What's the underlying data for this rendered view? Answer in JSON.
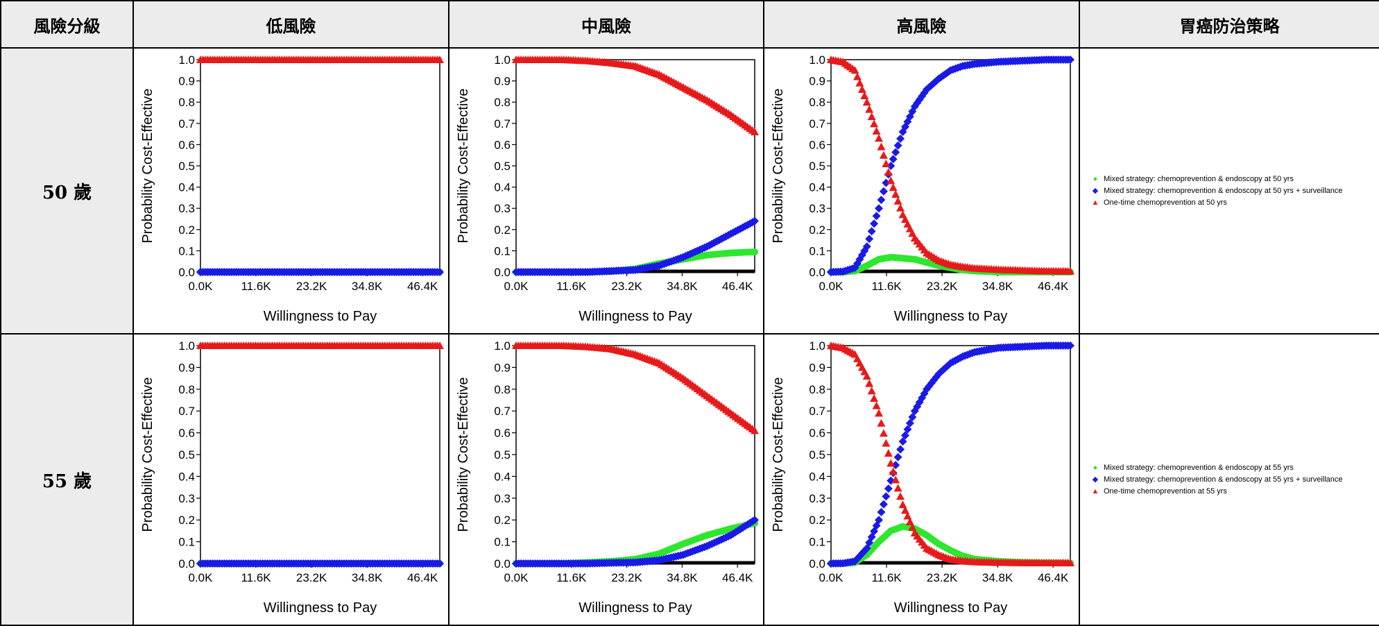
{
  "table": {
    "headers": [
      "風險分級",
      "低風險",
      "中風險",
      "高風險",
      "胃癌防治策略"
    ],
    "rows": [
      {
        "age_label": "50 歲",
        "legend": [
          {
            "label": "Mixed strategy: chemoprevention & endoscopy at 50 yrs",
            "color": "#2ee62e",
            "marker": "circle"
          },
          {
            "label": "Mixed strategy: chemoprevention & endoscopy at 50 yrs + surveillance",
            "color": "#1a1ae6",
            "marker": "diamond"
          },
          {
            "label": "One-time chemoprevention at 50 yrs",
            "color": "#e61a1a",
            "marker": "triangle"
          }
        ]
      },
      {
        "age_label": "55 歲",
        "legend": [
          {
            "label": "Mixed strategy: chemoprevention & endoscopy at 55 yrs",
            "color": "#2ee62e",
            "marker": "circle"
          },
          {
            "label": "Mixed strategy: chemoprevention & endoscopy at 55 yrs + surveillance",
            "color": "#1a1ae6",
            "marker": "diamond"
          },
          {
            "label": "One-time chemoprevention at 55 yrs",
            "color": "#e61a1a",
            "marker": "triangle"
          }
        ]
      }
    ]
  },
  "chart_data": [
    {
      "type": "scatter",
      "panel": "50 歲 / 低風險",
      "xlabel": "Willingness to Pay",
      "ylabel": "Probability Cost-Effective",
      "xlim": [
        0,
        50000
      ],
      "ylim": [
        0,
        1.0
      ],
      "x_ticks": [
        0,
        11600,
        23200,
        34800,
        46400
      ],
      "x_tick_labels": [
        "0.0K",
        "11.6K",
        "23.2K",
        "34.8K",
        "46.4K"
      ],
      "y_ticks": [
        0,
        0.1,
        0.2,
        0.3,
        0.4,
        0.5,
        0.6,
        0.7,
        0.8,
        0.9,
        1.0
      ],
      "y_tick_labels": [
        "0.0",
        "0.1",
        "0.2",
        "0.3",
        "0.4",
        "0.5",
        "0.6",
        "0.7",
        "0.8",
        "0.9",
        "1.0"
      ],
      "x": [
        0,
        5000,
        10000,
        15000,
        20000,
        25000,
        30000,
        35000,
        40000,
        45000,
        50000
      ],
      "series": [
        {
          "strategy": "mixed",
          "color": "#2ee62e",
          "values": [
            0,
            0,
            0,
            0,
            0,
            0,
            0,
            0,
            0,
            0,
            0
          ]
        },
        {
          "strategy": "mixed+surveillance",
          "color": "#1a1ae6",
          "values": [
            0,
            0,
            0,
            0,
            0,
            0,
            0,
            0,
            0,
            0,
            0
          ]
        },
        {
          "strategy": "one-time",
          "color": "#e61a1a",
          "values": [
            1,
            1,
            1,
            1,
            1,
            1,
            1,
            1,
            1,
            1,
            1
          ]
        }
      ]
    },
    {
      "type": "scatter",
      "panel": "50 歲 / 中風險",
      "xlabel": "Willingness to Pay",
      "ylabel": "Probability Cost-Effective",
      "xlim": [
        0,
        50000
      ],
      "ylim": [
        0,
        1.0
      ],
      "x_ticks": [
        0,
        11600,
        23200,
        34800,
        46400
      ],
      "x_tick_labels": [
        "0.0K",
        "11.6K",
        "23.2K",
        "34.8K",
        "46.4K"
      ],
      "y_ticks": [
        0,
        0.1,
        0.2,
        0.3,
        0.4,
        0.5,
        0.6,
        0.7,
        0.8,
        0.9,
        1.0
      ],
      "y_tick_labels": [
        "0.0",
        "0.1",
        "0.2",
        "0.3",
        "0.4",
        "0.5",
        "0.6",
        "0.7",
        "0.8",
        "0.9",
        "1.0"
      ],
      "x": [
        0,
        5000,
        10000,
        15000,
        20000,
        25000,
        30000,
        35000,
        40000,
        45000,
        50000
      ],
      "series": [
        {
          "strategy": "mixed",
          "color": "#2ee62e",
          "values": [
            0,
            0,
            0,
            0,
            0.003,
            0.015,
            0.04,
            0.06,
            0.08,
            0.09,
            0.095
          ]
        },
        {
          "strategy": "mixed+surveillance",
          "color": "#1a1ae6",
          "values": [
            0,
            0,
            0,
            0,
            0.005,
            0.01,
            0.03,
            0.07,
            0.12,
            0.18,
            0.24
          ]
        },
        {
          "strategy": "one-time",
          "color": "#e61a1a",
          "values": [
            1.0,
            1.0,
            1.0,
            0.995,
            0.985,
            0.97,
            0.93,
            0.87,
            0.81,
            0.74,
            0.66
          ]
        }
      ]
    },
    {
      "type": "scatter",
      "panel": "50 歲 / 高風險",
      "xlabel": "Willingness to Pay",
      "ylabel": "Probability Cost-Effective",
      "xlim": [
        0,
        50000
      ],
      "ylim": [
        0,
        1.0
      ],
      "x_ticks": [
        0,
        11600,
        23200,
        34800,
        46400
      ],
      "x_tick_labels": [
        "0.0K",
        "11.6K",
        "23.2K",
        "34.8K",
        "46.4K"
      ],
      "y_ticks": [
        0,
        0.1,
        0.2,
        0.3,
        0.4,
        0.5,
        0.6,
        0.7,
        0.8,
        0.9,
        1.0
      ],
      "y_tick_labels": [
        "0.0",
        "0.1",
        "0.2",
        "0.3",
        "0.4",
        "0.5",
        "0.6",
        "0.7",
        "0.8",
        "0.9",
        "1.0"
      ],
      "x": [
        0,
        2500,
        5000,
        7500,
        10000,
        12500,
        15000,
        17500,
        20000,
        22500,
        25000,
        27500,
        30000,
        35000,
        40000,
        45000,
        50000
      ],
      "series": [
        {
          "strategy": "mixed",
          "color": "#2ee62e",
          "values": [
            0,
            0,
            0.005,
            0.03,
            0.06,
            0.07,
            0.065,
            0.06,
            0.045,
            0.03,
            0.02,
            0.01,
            0.005,
            0,
            0,
            0,
            0
          ]
        },
        {
          "strategy": "mixed+surveillance",
          "color": "#1a1ae6",
          "values": [
            0,
            0.002,
            0.02,
            0.12,
            0.3,
            0.5,
            0.66,
            0.78,
            0.86,
            0.91,
            0.95,
            0.97,
            0.98,
            0.99,
            0.995,
            1.0,
            1.0
          ]
        },
        {
          "strategy": "one-time",
          "color": "#e61a1a",
          "values": [
            1.0,
            0.99,
            0.95,
            0.8,
            0.63,
            0.43,
            0.27,
            0.16,
            0.09,
            0.055,
            0.035,
            0.025,
            0.018,
            0.012,
            0.008,
            0.005,
            0.004
          ]
        }
      ]
    },
    {
      "type": "scatter",
      "panel": "55 歲 / 低風險",
      "xlabel": "Willingness to Pay",
      "ylabel": "Probability Cost-Effective",
      "xlim": [
        0,
        50000
      ],
      "ylim": [
        0,
        1.0
      ],
      "x_ticks": [
        0,
        11600,
        23200,
        34800,
        46400
      ],
      "x_tick_labels": [
        "0.0K",
        "11.6K",
        "23.2K",
        "34.8K",
        "46.4K"
      ],
      "y_ticks": [
        0,
        0.1,
        0.2,
        0.3,
        0.4,
        0.5,
        0.6,
        0.7,
        0.8,
        0.9,
        1.0
      ],
      "y_tick_labels": [
        "0.0",
        "0.1",
        "0.2",
        "0.3",
        "0.4",
        "0.5",
        "0.6",
        "0.7",
        "0.8",
        "0.9",
        "1.0"
      ],
      "x": [
        0,
        5000,
        10000,
        15000,
        20000,
        25000,
        30000,
        35000,
        40000,
        45000,
        50000
      ],
      "series": [
        {
          "strategy": "mixed",
          "color": "#2ee62e",
          "values": [
            0,
            0,
            0,
            0,
            0,
            0,
            0,
            0,
            0,
            0,
            0
          ]
        },
        {
          "strategy": "mixed+surveillance",
          "color": "#1a1ae6",
          "values": [
            0,
            0,
            0,
            0,
            0,
            0,
            0,
            0,
            0,
            0,
            0
          ]
        },
        {
          "strategy": "one-time",
          "color": "#e61a1a",
          "values": [
            1,
            1,
            1,
            1,
            1,
            1,
            1,
            1,
            1,
            1,
            1
          ]
        }
      ]
    },
    {
      "type": "scatter",
      "panel": "55 歲 / 中風險",
      "xlabel": "Willingness to Pay",
      "ylabel": "Probability Cost-Effective",
      "xlim": [
        0,
        50000
      ],
      "ylim": [
        0,
        1.0
      ],
      "x_ticks": [
        0,
        11600,
        23200,
        34800,
        46400
      ],
      "x_tick_labels": [
        "0.0K",
        "11.6K",
        "23.2K",
        "34.8K",
        "46.4K"
      ],
      "y_ticks": [
        0,
        0.1,
        0.2,
        0.3,
        0.4,
        0.5,
        0.6,
        0.7,
        0.8,
        0.9,
        1.0
      ],
      "y_tick_labels": [
        "0.0",
        "0.1",
        "0.2",
        "0.3",
        "0.4",
        "0.5",
        "0.6",
        "0.7",
        "0.8",
        "0.9",
        "1.0"
      ],
      "x": [
        0,
        5000,
        10000,
        15000,
        20000,
        25000,
        30000,
        35000,
        40000,
        45000,
        50000
      ],
      "series": [
        {
          "strategy": "mixed",
          "color": "#2ee62e",
          "values": [
            0,
            0,
            0,
            0.005,
            0.01,
            0.02,
            0.045,
            0.09,
            0.13,
            0.16,
            0.185
          ]
        },
        {
          "strategy": "mixed+surveillance",
          "color": "#1a1ae6",
          "values": [
            0,
            0,
            0,
            0,
            0.003,
            0.005,
            0.015,
            0.04,
            0.08,
            0.13,
            0.2
          ]
        },
        {
          "strategy": "one-time",
          "color": "#e61a1a",
          "values": [
            1.0,
            1.0,
            1.0,
            0.995,
            0.985,
            0.96,
            0.92,
            0.85,
            0.77,
            0.69,
            0.61
          ]
        }
      ]
    },
    {
      "type": "scatter",
      "panel": "55 歲 / 高風險",
      "xlabel": "Willingness to Pay",
      "ylabel": "Probability Cost-Effective",
      "xlim": [
        0,
        50000
      ],
      "ylim": [
        0,
        1.0
      ],
      "x_ticks": [
        0,
        11600,
        23200,
        34800,
        46400
      ],
      "x_tick_labels": [
        "0.0K",
        "11.6K",
        "23.2K",
        "34.8K",
        "46.4K"
      ],
      "y_ticks": [
        0,
        0.1,
        0.2,
        0.3,
        0.4,
        0.5,
        0.6,
        0.7,
        0.8,
        0.9,
        1.0
      ],
      "y_tick_labels": [
        "0.0",
        "0.1",
        "0.2",
        "0.3",
        "0.4",
        "0.5",
        "0.6",
        "0.7",
        "0.8",
        "0.9",
        "1.0"
      ],
      "x": [
        0,
        2500,
        5000,
        7500,
        10000,
        12500,
        15000,
        17500,
        20000,
        22500,
        25000,
        27500,
        30000,
        35000,
        40000,
        45000,
        50000
      ],
      "series": [
        {
          "strategy": "mixed",
          "color": "#2ee62e",
          "values": [
            0,
            0,
            0.005,
            0.04,
            0.1,
            0.15,
            0.17,
            0.16,
            0.13,
            0.09,
            0.06,
            0.035,
            0.02,
            0.01,
            0.005,
            0.003,
            0.002
          ]
        },
        {
          "strategy": "mixed+surveillance",
          "color": "#1a1ae6",
          "values": [
            0,
            0.001,
            0.01,
            0.07,
            0.2,
            0.38,
            0.56,
            0.7,
            0.8,
            0.87,
            0.92,
            0.95,
            0.97,
            0.99,
            0.995,
            1.0,
            1.0
          ]
        },
        {
          "strategy": "one-time",
          "color": "#e61a1a",
          "values": [
            1.0,
            0.99,
            0.96,
            0.86,
            0.69,
            0.46,
            0.27,
            0.14,
            0.07,
            0.04,
            0.02,
            0.012,
            0.008,
            0.005,
            0.004,
            0.003,
            0.003
          ]
        }
      ]
    }
  ]
}
